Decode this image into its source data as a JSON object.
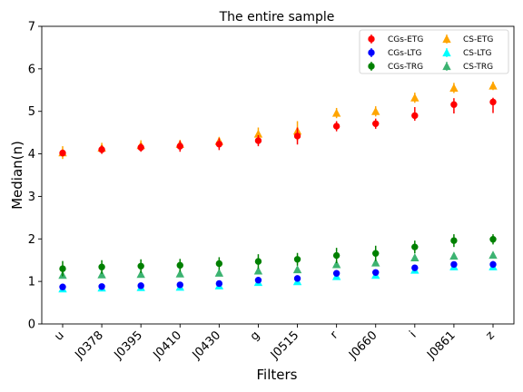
{
  "chart_data": {
    "type": "scatter",
    "title": "The entire sample",
    "xlabel": "Filters",
    "ylabel": "Median(n)",
    "categories": [
      "u",
      "J0378",
      "J0395",
      "J0410",
      "J0430",
      "g",
      "J0515",
      "r",
      "J0660",
      "i",
      "J0861",
      "z"
    ],
    "ylim": [
      0,
      7
    ],
    "yticks": [
      0,
      1,
      2,
      3,
      4,
      5,
      6,
      7
    ],
    "grid": false,
    "legend": {
      "placement": "top-right",
      "columns": 2
    },
    "series": [
      {
        "name": "CGs-ETG",
        "color": "#ff0000",
        "marker": "circle",
        "errorbar": true,
        "values": [
          4.02,
          4.1,
          4.15,
          4.18,
          4.23,
          4.31,
          4.42,
          4.65,
          4.71,
          4.9,
          5.16,
          5.22
        ],
        "err_low": [
          0.08,
          0.1,
          0.1,
          0.13,
          0.14,
          0.13,
          0.2,
          0.12,
          0.12,
          0.12,
          0.21,
          0.26
        ],
        "err_high": [
          0.08,
          0.1,
          0.1,
          0.13,
          0.14,
          0.13,
          0.2,
          0.12,
          0.12,
          0.2,
          0.15,
          0.1
        ]
      },
      {
        "name": "CGs-LTG",
        "color": "#0000ff",
        "marker": "circle",
        "errorbar": true,
        "values": [
          0.87,
          0.88,
          0.9,
          0.92,
          0.95,
          1.03,
          1.07,
          1.19,
          1.21,
          1.32,
          1.4,
          1.4
        ],
        "err_low": [
          0.04,
          0.04,
          0.05,
          0.05,
          0.05,
          0.05,
          0.05,
          0.06,
          0.06,
          0.06,
          0.06,
          0.08
        ],
        "err_high": [
          0.04,
          0.04,
          0.05,
          0.05,
          0.05,
          0.05,
          0.05,
          0.06,
          0.06,
          0.06,
          0.06,
          0.08
        ]
      },
      {
        "name": "CGs-TRG",
        "color": "#008000",
        "marker": "circle",
        "errorbar": true,
        "values": [
          1.3,
          1.34,
          1.36,
          1.38,
          1.42,
          1.47,
          1.52,
          1.61,
          1.66,
          1.81,
          1.96,
          1.99
        ],
        "err_low": [
          0.18,
          0.16,
          0.16,
          0.15,
          0.15,
          0.17,
          0.15,
          0.18,
          0.18,
          0.15,
          0.15,
          0.12
        ],
        "err_high": [
          0.18,
          0.16,
          0.16,
          0.15,
          0.15,
          0.17,
          0.15,
          0.18,
          0.18,
          0.15,
          0.15,
          0.12
        ]
      },
      {
        "name": "CS-ETG",
        "color": "#ffa500",
        "marker": "triangle",
        "errorbar": true,
        "values": [
          4.03,
          4.14,
          4.2,
          4.23,
          4.3,
          4.47,
          4.54,
          4.96,
          5.0,
          5.32,
          5.55,
          5.6
        ],
        "err_low": [
          0.15,
          0.12,
          0.12,
          0.1,
          0.1,
          0.15,
          0.23,
          0.12,
          0.12,
          0.12,
          0.12,
          0.1
        ],
        "err_high": [
          0.15,
          0.12,
          0.12,
          0.1,
          0.1,
          0.15,
          0.23,
          0.12,
          0.12,
          0.12,
          0.12,
          0.1
        ]
      },
      {
        "name": "CS-LTG",
        "color": "#00ffff",
        "marker": "triangle",
        "errorbar": true,
        "values": [
          0.83,
          0.85,
          0.86,
          0.87,
          0.9,
          0.98,
          1.0,
          1.12,
          1.15,
          1.27,
          1.35,
          1.35
        ],
        "err_low": [
          0.02,
          0.02,
          0.02,
          0.02,
          0.02,
          0.02,
          0.02,
          0.03,
          0.03,
          0.03,
          0.03,
          0.03
        ],
        "err_high": [
          0.02,
          0.02,
          0.02,
          0.02,
          0.02,
          0.02,
          0.02,
          0.03,
          0.03,
          0.03,
          0.03,
          0.03
        ]
      },
      {
        "name": "CS-TRG",
        "color": "#3cb371",
        "marker": "triangle",
        "errorbar": true,
        "values": [
          1.15,
          1.16,
          1.17,
          1.18,
          1.2,
          1.25,
          1.28,
          1.4,
          1.44,
          1.56,
          1.6,
          1.62
        ],
        "err_low": [
          0.03,
          0.03,
          0.03,
          0.03,
          0.03,
          0.03,
          0.03,
          0.03,
          0.03,
          0.03,
          0.03,
          0.03
        ],
        "err_high": [
          0.03,
          0.03,
          0.03,
          0.03,
          0.03,
          0.03,
          0.03,
          0.03,
          0.03,
          0.03,
          0.03,
          0.03
        ]
      }
    ]
  }
}
